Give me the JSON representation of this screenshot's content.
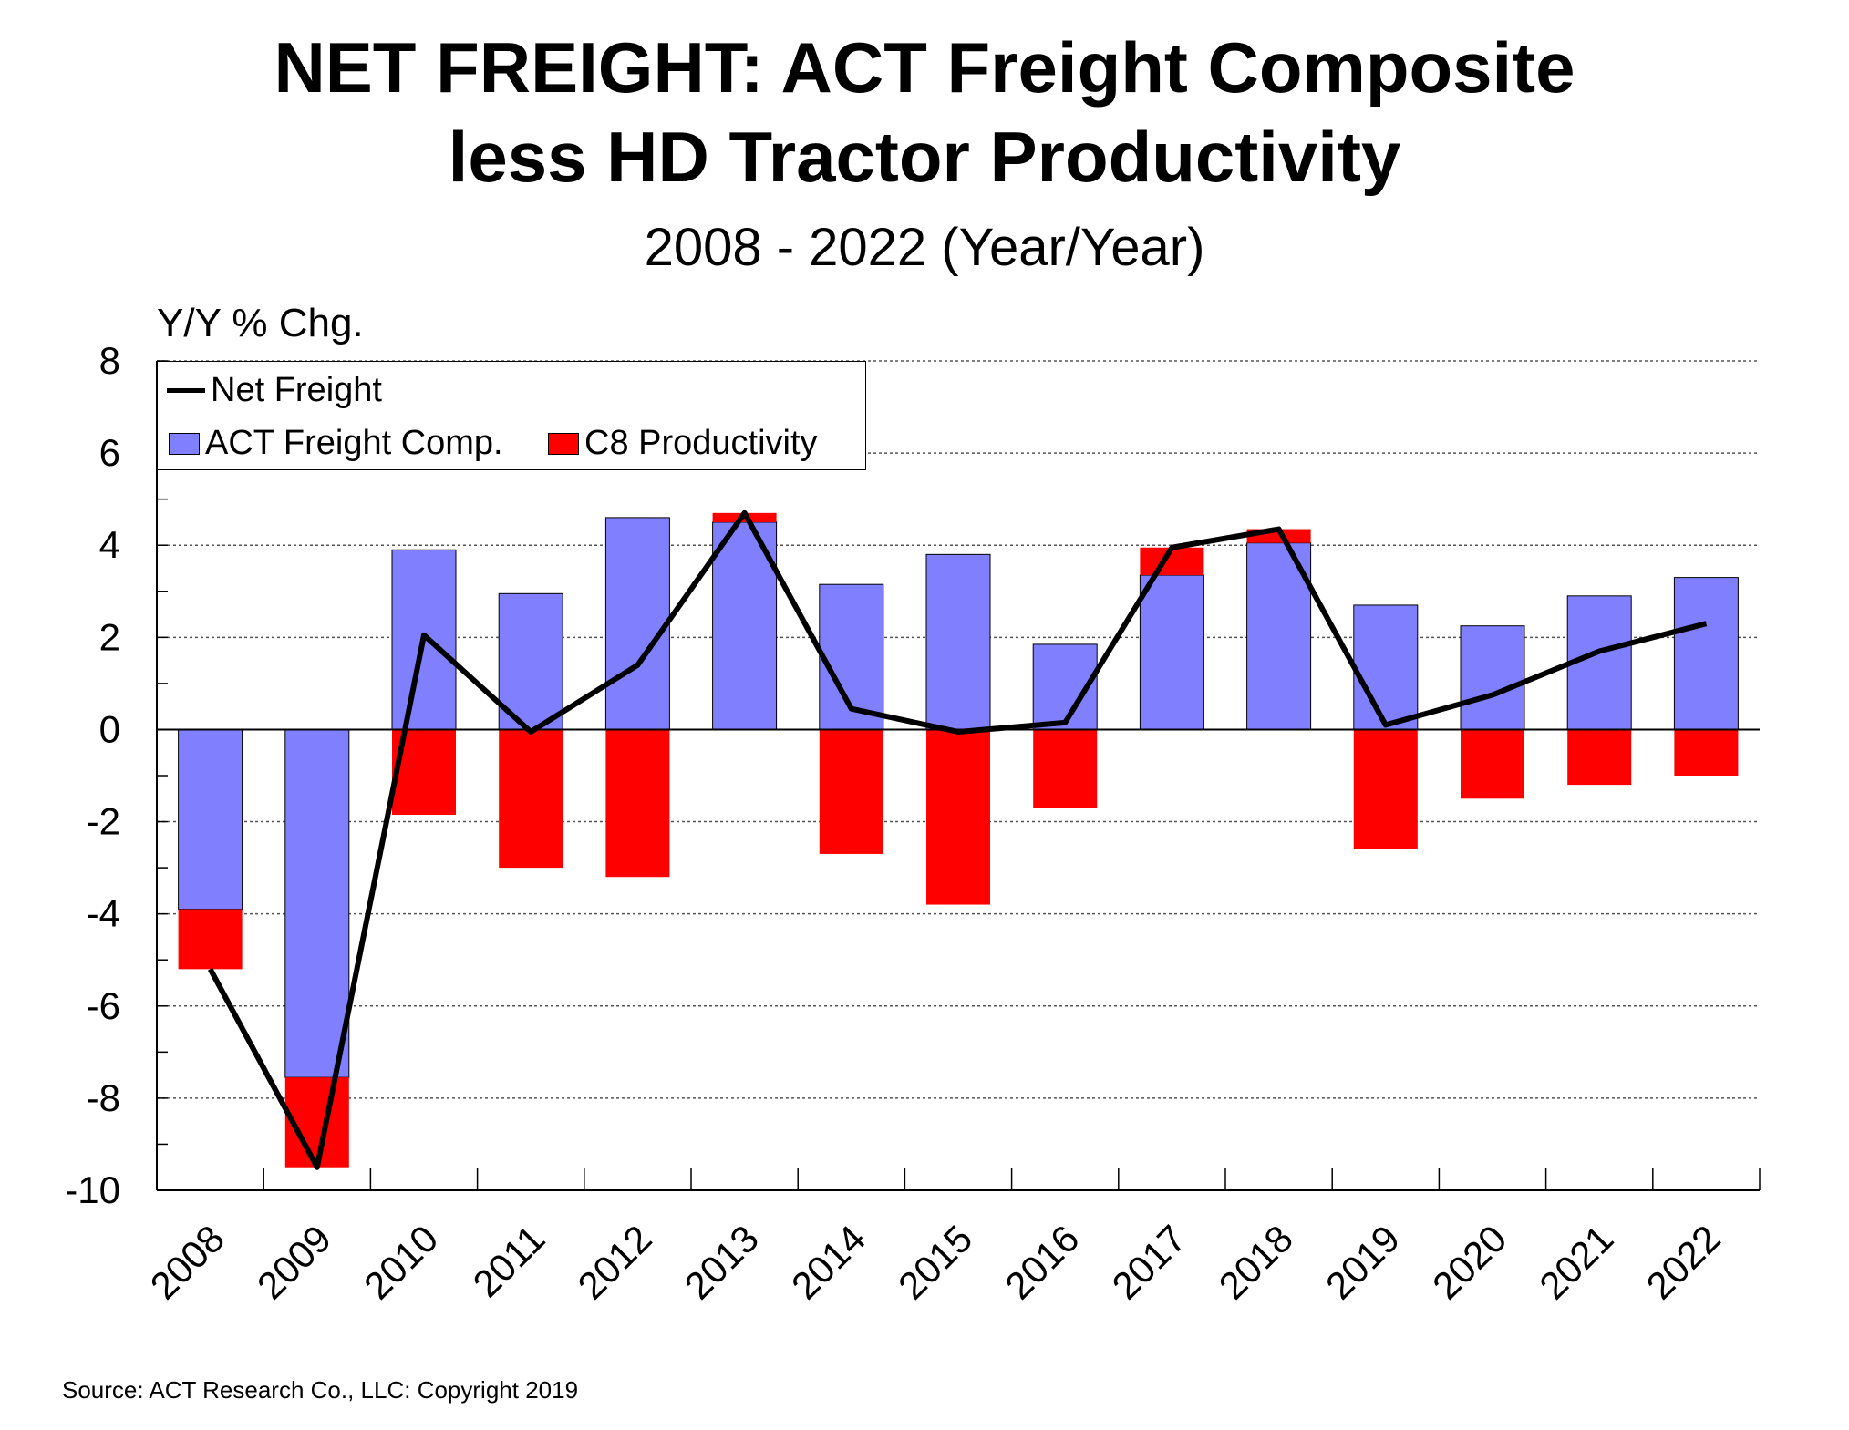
{
  "title_line1": "NET FREIGHT: ACT Freight Composite",
  "title_line2": "less HD Tractor Productivity",
  "subtitle": "2008 - 2022 (Year/Year)",
  "ylabel": "Y/Y % Chg.",
  "source": "Source: ACT Research Co., LLC: Copyright 2019",
  "legend": {
    "line_label": "Net Freight",
    "freight_label": "ACT Freight Comp.",
    "productivity_label": "C8 Productivity"
  },
  "colors": {
    "freight": "#8080FF",
    "productivity": "#FF0000",
    "line": "#000000"
  },
  "chart_data": {
    "type": "bar",
    "categories": [
      "2008",
      "2009",
      "2010",
      "2011",
      "2012",
      "2013",
      "2014",
      "2015",
      "2016",
      "2017",
      "2018",
      "2019",
      "2020",
      "2021",
      "2022"
    ],
    "series": [
      {
        "name": "ACT Freight Comp.",
        "type": "bar",
        "values": [
          -3.9,
          -7.55,
          3.9,
          2.95,
          4.6,
          4.5,
          3.15,
          3.8,
          1.85,
          3.35,
          4.05,
          2.7,
          2.25,
          2.9,
          3.3
        ]
      },
      {
        "name": "C8 Productivity",
        "type": "bar",
        "values": [
          -1.3,
          -1.95,
          -1.85,
          -3.0,
          -3.2,
          0.2,
          -2.7,
          -3.8,
          -1.7,
          0.6,
          0.3,
          -2.6,
          -1.5,
          -1.2,
          -1.0
        ]
      },
      {
        "name": "Net Freight",
        "type": "line",
        "values": [
          -5.2,
          -9.5,
          2.05,
          -0.05,
          1.4,
          4.7,
          0.45,
          -0.05,
          0.15,
          3.95,
          4.35,
          0.1,
          0.75,
          1.7,
          2.3
        ]
      }
    ],
    "ylim": [
      -10,
      8
    ],
    "yticks": [
      -10,
      -8,
      -6,
      -4,
      -2,
      0,
      2,
      4,
      6,
      8
    ],
    "grid": true,
    "legend_position": "top-left"
  }
}
